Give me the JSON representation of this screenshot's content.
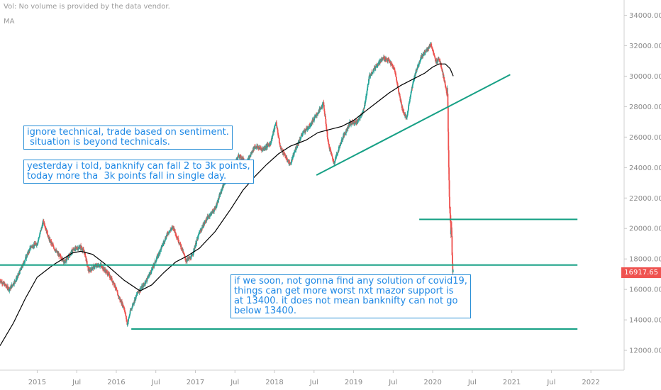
{
  "header": {
    "vol_text": "Vol: No volume is provided by the data vendor.",
    "ma_text": "MA"
  },
  "notes": [
    {
      "text": "ignore technical, trade based on sentiment.\n situation is beyond technicals."
    },
    {
      "text": "yesterday i told, banknify can fall 2 to 3k points,\ntoday more tha  3k points fall in single day."
    },
    {
      "text": "if we soon, not gonna find any solution of covid19,\nthings can get more worst nxt mazor support is\nat 13400. it does not mean banknifty can not go\nbelow 13400."
    }
  ],
  "last_price": "16917.65",
  "colors": {
    "up": "#26a69a",
    "down": "#ef5350",
    "ma": "#000000",
    "trendline": "#16a085",
    "note_border": "#2a8fd6",
    "note_text": "#1e88e5",
    "axis_text": "#8a8a8a"
  },
  "chart_data": {
    "type": "candlestick",
    "x_axis": {
      "tick_labels": [
        "2015",
        "Jul",
        "2016",
        "Jul",
        "2017",
        "Jul",
        "2018",
        "Jul",
        "2019",
        "Jul",
        "2020",
        "Jul",
        "2021",
        "Jul",
        "2022"
      ],
      "tick_times": [
        2015.0,
        2015.5,
        2016.0,
        2016.5,
        2017.0,
        2017.5,
        2018.0,
        2018.5,
        2019.0,
        2019.5,
        2020.0,
        2020.5,
        2021.0,
        2021.5,
        2022.0
      ],
      "range": [
        2014.53,
        2022.42
      ]
    },
    "y_axis": {
      "tick_labels": [
        "12000.00",
        "14000.00",
        "16000.00",
        "18000.00",
        "20000.00",
        "22000.00",
        "24000.00",
        "26000.00",
        "28000.00",
        "30000.00",
        "32000.00",
        "34000.00"
      ],
      "tick_values": [
        12000,
        14000,
        16000,
        18000,
        20000,
        22000,
        24000,
        26000,
        28000,
        30000,
        32000,
        34000
      ],
      "range": [
        10700,
        35000
      ]
    },
    "price_path": [
      [
        2014.53,
        16600
      ],
      [
        2014.65,
        16000
      ],
      [
        2014.75,
        16800
      ],
      [
        2014.85,
        18000
      ],
      [
        2014.92,
        18800
      ],
      [
        2015.0,
        19000
      ],
      [
        2015.08,
        20500
      ],
      [
        2015.15,
        19300
      ],
      [
        2015.25,
        18400
      ],
      [
        2015.35,
        17800
      ],
      [
        2015.45,
        18600
      ],
      [
        2015.55,
        18800
      ],
      [
        2015.6,
        18400
      ],
      [
        2015.65,
        17200
      ],
      [
        2015.72,
        17500
      ],
      [
        2015.8,
        17600
      ],
      [
        2015.9,
        17000
      ],
      [
        2015.97,
        16400
      ],
      [
        2016.03,
        15500
      ],
      [
        2016.1,
        14800
      ],
      [
        2016.14,
        13700
      ],
      [
        2016.18,
        14600
      ],
      [
        2016.27,
        15800
      ],
      [
        2016.35,
        16300
      ],
      [
        2016.45,
        17300
      ],
      [
        2016.55,
        18500
      ],
      [
        2016.65,
        19700
      ],
      [
        2016.72,
        20100
      ],
      [
        2016.77,
        19400
      ],
      [
        2016.82,
        18800
      ],
      [
        2016.88,
        17900
      ],
      [
        2016.95,
        18100
      ],
      [
        2017.05,
        19700
      ],
      [
        2017.15,
        20700
      ],
      [
        2017.25,
        21300
      ],
      [
        2017.35,
        22800
      ],
      [
        2017.45,
        23800
      ],
      [
        2017.55,
        24800
      ],
      [
        2017.65,
        24300
      ],
      [
        2017.75,
        25400
      ],
      [
        2017.85,
        25200
      ],
      [
        2017.95,
        25600
      ],
      [
        2018.02,
        27000
      ],
      [
        2018.07,
        25400
      ],
      [
        2018.15,
        24600
      ],
      [
        2018.2,
        24200
      ],
      [
        2018.28,
        25400
      ],
      [
        2018.35,
        26200
      ],
      [
        2018.45,
        26800
      ],
      [
        2018.55,
        27600
      ],
      [
        2018.62,
        28200
      ],
      [
        2018.68,
        25600
      ],
      [
        2018.75,
        24300
      ],
      [
        2018.85,
        25800
      ],
      [
        2018.95,
        26900
      ],
      [
        2019.05,
        27000
      ],
      [
        2019.13,
        27800
      ],
      [
        2019.2,
        30000
      ],
      [
        2019.3,
        30800
      ],
      [
        2019.38,
        31200
      ],
      [
        2019.45,
        31000
      ],
      [
        2019.52,
        30400
      ],
      [
        2019.57,
        29000
      ],
      [
        2019.62,
        27800
      ],
      [
        2019.67,
        27200
      ],
      [
        2019.72,
        28800
      ],
      [
        2019.78,
        30200
      ],
      [
        2019.85,
        31200
      ],
      [
        2019.92,
        31700
      ],
      [
        2019.98,
        32100
      ],
      [
        2020.04,
        30900
      ],
      [
        2020.08,
        31200
      ],
      [
        2020.12,
        30400
      ],
      [
        2020.16,
        29400
      ],
      [
        2020.19,
        28400
      ],
      [
        2020.2,
        25000
      ],
      [
        2020.21,
        22400
      ],
      [
        2020.22,
        20600
      ],
      [
        2020.24,
        19500
      ],
      [
        2020.25,
        17200
      ],
      [
        2020.26,
        16917.65
      ]
    ],
    "moving_average": [
      [
        2014.53,
        12300
      ],
      [
        2014.7,
        13800
      ],
      [
        2014.85,
        15400
      ],
      [
        2015.0,
        16800
      ],
      [
        2015.2,
        17600
      ],
      [
        2015.45,
        18400
      ],
      [
        2015.55,
        18500
      ],
      [
        2015.7,
        18300
      ],
      [
        2015.9,
        17500
      ],
      [
        2016.1,
        16600
      ],
      [
        2016.3,
        15900
      ],
      [
        2016.45,
        16300
      ],
      [
        2016.6,
        17100
      ],
      [
        2016.75,
        17800
      ],
      [
        2016.9,
        18200
      ],
      [
        2017.05,
        18700
      ],
      [
        2017.25,
        19800
      ],
      [
        2017.45,
        21300
      ],
      [
        2017.6,
        22500
      ],
      [
        2017.75,
        23400
      ],
      [
        2017.9,
        24200
      ],
      [
        2018.05,
        24900
      ],
      [
        2018.2,
        25400
      ],
      [
        2018.4,
        25800
      ],
      [
        2018.55,
        26300
      ],
      [
        2018.7,
        26500
      ],
      [
        2018.85,
        26700
      ],
      [
        2019.0,
        27100
      ],
      [
        2019.15,
        27700
      ],
      [
        2019.3,
        28300
      ],
      [
        2019.45,
        28900
      ],
      [
        2019.6,
        29400
      ],
      [
        2019.75,
        29800
      ],
      [
        2019.9,
        30200
      ],
      [
        2020.0,
        30600
      ],
      [
        2020.08,
        30800
      ],
      [
        2020.16,
        30800
      ],
      [
        2020.22,
        30500
      ],
      [
        2020.26,
        30000
      ]
    ],
    "lines": [
      {
        "from": [
          2019.83,
          20600
        ],
        "to": [
          2021.83,
          20600
        ]
      },
      {
        "from": [
          2014.53,
          17600
        ],
        "to": [
          2021.83,
          17600
        ]
      },
      {
        "from": [
          2016.19,
          13400
        ],
        "to": [
          2021.83,
          13400
        ]
      },
      {
        "from": [
          2018.53,
          23500
        ],
        "to": [
          2020.98,
          30100
        ]
      }
    ]
  }
}
